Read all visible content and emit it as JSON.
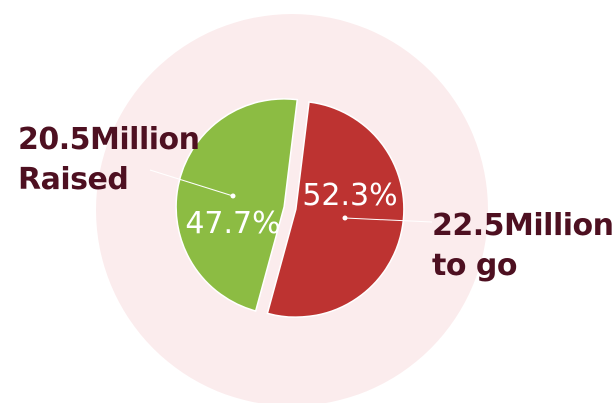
{
  "chart_data": {
    "type": "pie",
    "title": "",
    "slices": [
      {
        "label": "Raised",
        "value": 47.7,
        "value_label": "47.7%",
        "color": "#8cbc43"
      },
      {
        "label": "To go",
        "value": 52.3,
        "value_label": "52.3%",
        "color": "#bd3331"
      }
    ],
    "callouts": [
      {
        "line1": "20.5Million",
        "line2": "Raised"
      },
      {
        "line1": "22.5Million",
        "line2": "to go"
      }
    ],
    "background_circle_color": "#fbeced",
    "legend": "none"
  }
}
